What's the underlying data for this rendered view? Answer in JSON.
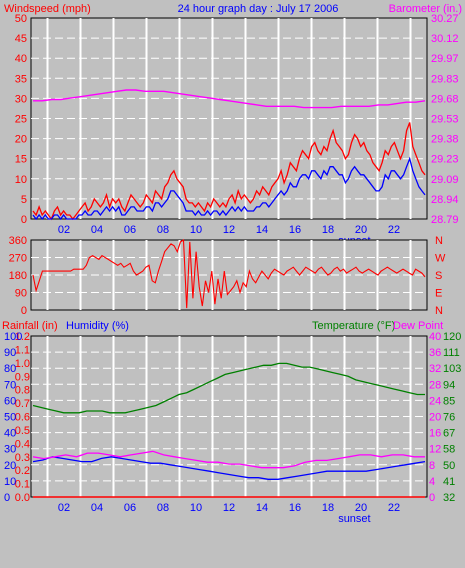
{
  "colors": {
    "background": "#c0c0c0",
    "plot_bg": "#c0c0c0",
    "grid": "#ffffff",
    "red": "#ff0000",
    "blue": "#0000ff",
    "magenta": "#ff00ff",
    "green": "#008000",
    "black": "#000000"
  },
  "header": {
    "left": "Windspeed (mph)",
    "center": "24 hour graph day : July 17 2006",
    "right": "Barometer (in.)"
  },
  "chart_data": [
    {
      "type": "line",
      "xlabel_ticks": [
        "02",
        "04",
        "06",
        "08",
        "10",
        "12",
        "14",
        "16",
        "18",
        "20",
        "22"
      ],
      "sunset_label": "sunset",
      "left_axis": {
        "label": "Windspeed (mph)",
        "ticks": [
          "50",
          "45",
          "40",
          "35",
          "30",
          "25",
          "20",
          "15",
          "10",
          "5",
          "0"
        ],
        "ylim": [
          0,
          50
        ]
      },
      "right_axis": {
        "label": "Barometer (in.)",
        "ticks": [
          "30.27",
          "30.12",
          "29.97",
          "29.83",
          "29.68",
          "29.53",
          "29.38",
          "29.23",
          "29.09",
          "28.94",
          "28.79"
        ],
        "ylim": [
          28.79,
          30.27
        ]
      },
      "series": [
        {
          "name": "Windspeed gust",
          "color": "red",
          "values": [
            2,
            1,
            3,
            1,
            2,
            1,
            0,
            2,
            3,
            1,
            2,
            1,
            1,
            0,
            1,
            2,
            3,
            4,
            2,
            3,
            5,
            4,
            3,
            4,
            6,
            3,
            5,
            4,
            5,
            3,
            2,
            4,
            6,
            5,
            4,
            3,
            4,
            6,
            5,
            4,
            7,
            6,
            5,
            8,
            9,
            11,
            12,
            10,
            9,
            8,
            5,
            4,
            4,
            3,
            4,
            3,
            2,
            4,
            3,
            5,
            4,
            3,
            4,
            3,
            5,
            6,
            4,
            7,
            5,
            6,
            5,
            4,
            5,
            7,
            6,
            8,
            7,
            6,
            8,
            9,
            10,
            12,
            9,
            11,
            14,
            13,
            12,
            15,
            17,
            16,
            15,
            18,
            19,
            17,
            16,
            18,
            17,
            20,
            22,
            19,
            18,
            17,
            15,
            16,
            19,
            21,
            20,
            18,
            19,
            17,
            16,
            14,
            13,
            12,
            14,
            17,
            16,
            18,
            19,
            17,
            15,
            17,
            22,
            24,
            18,
            16,
            14,
            12,
            11
          ]
        },
        {
          "name": "Windspeed",
          "color": "blue",
          "values": [
            1,
            0,
            1,
            0,
            1,
            0,
            0,
            1,
            1,
            0,
            1,
            0,
            0,
            0,
            0,
            1,
            1,
            2,
            1,
            1,
            2,
            2,
            1,
            2,
            3,
            2,
            3,
            2,
            3,
            1,
            1,
            2,
            3,
            3,
            2,
            2,
            2,
            3,
            3,
            2,
            4,
            4,
            3,
            4,
            5,
            7,
            7,
            6,
            5,
            4,
            2,
            2,
            2,
            1,
            2,
            1,
            1,
            2,
            1,
            2,
            2,
            1,
            2,
            1,
            2,
            3,
            2,
            3,
            2,
            3,
            2,
            2,
            2,
            3,
            3,
            4,
            4,
            3,
            4,
            5,
            6,
            7,
            6,
            7,
            9,
            8,
            8,
            10,
            11,
            11,
            10,
            12,
            12,
            11,
            10,
            12,
            11,
            13,
            13,
            12,
            11,
            11,
            9,
            10,
            12,
            13,
            12,
            11,
            11,
            10,
            9,
            8,
            7,
            7,
            8,
            11,
            10,
            12,
            12,
            11,
            10,
            11,
            13,
            15,
            12,
            10,
            8,
            7,
            6
          ]
        },
        {
          "name": "Barometer",
          "color": "magenta",
          "values": [
            29.66,
            29.66,
            29.67,
            29.67,
            29.68,
            29.69,
            29.7,
            29.71,
            29.72,
            29.73,
            29.74,
            29.74,
            29.73,
            29.73,
            29.73,
            29.72,
            29.71,
            29.7,
            29.69,
            29.68,
            29.67,
            29.66,
            29.65,
            29.64,
            29.63,
            29.62,
            29.62,
            29.62,
            29.62,
            29.61,
            29.61,
            29.61,
            29.61,
            29.62,
            29.62,
            29.62,
            29.62,
            29.63,
            29.63,
            29.64,
            29.65,
            29.65,
            29.66
          ]
        }
      ]
    },
    {
      "type": "line",
      "left_axis": {
        "ticks": [
          "360",
          "270",
          "180",
          "90",
          "0"
        ],
        "ylim": [
          0,
          360
        ]
      },
      "right_axis": {
        "ticks": [
          "N",
          "W",
          "S",
          "E",
          "N"
        ]
      },
      "series": [
        {
          "name": "Wind direction",
          "color": "red",
          "values": [
            180,
            100,
            150,
            200,
            200,
            200,
            200,
            200,
            200,
            200,
            200,
            200,
            200,
            210,
            210,
            210,
            210,
            230,
            270,
            280,
            270,
            260,
            280,
            270,
            260,
            250,
            240,
            230,
            240,
            220,
            230,
            240,
            200,
            180,
            190,
            200,
            220,
            230,
            150,
            140,
            200,
            250,
            300,
            320,
            340,
            330,
            300,
            350,
            360,
            10,
            350,
            60,
            300,
            120,
            20,
            150,
            90,
            200,
            30,
            160,
            60,
            200,
            80,
            100,
            120,
            150,
            90,
            140,
            120,
            200,
            160,
            140,
            170,
            200,
            180,
            160,
            190,
            210,
            200,
            190,
            180,
            200,
            210,
            220,
            200,
            180,
            200,
            220,
            210,
            200,
            190,
            210,
            220,
            200,
            180,
            190,
            210,
            220,
            200,
            210,
            190,
            200,
            210,
            220,
            200,
            190,
            200,
            210,
            200,
            190,
            180,
            200,
            210,
            220,
            210,
            200,
            190,
            200,
            210,
            200,
            190,
            180,
            210,
            200,
            190,
            170
          ]
        }
      ]
    },
    {
      "type": "line",
      "labels_top": {
        "rainfall": "Rainfall (in)",
        "humidity": "Humidity (%)",
        "temperature": "Temperature (°F)",
        "dewpoint": "Dew Point"
      },
      "rain_ticks": [
        "1.2",
        "1.1",
        "1.0",
        "0.9",
        "0.8",
        "0.7",
        "0.6",
        "0.5",
        "0.4",
        "0.3",
        "0.2",
        "0.1",
        "0.0"
      ],
      "humidity_ticks": [
        "100",
        "90",
        "80",
        "70",
        "60",
        "50",
        "40",
        "30",
        "20",
        "10",
        "0"
      ],
      "temp_ticks": [
        "40",
        "36",
        "32",
        "28",
        "24",
        "20",
        "16",
        "12",
        "8",
        "4",
        "0"
      ],
      "dew_ticks": [
        "120",
        "111",
        "103",
        "94",
        "85",
        "76",
        "67",
        "58",
        "50",
        "41",
        "32"
      ],
      "temp_ylim": [
        32,
        120
      ],
      "series": [
        {
          "name": "Temperature",
          "color": "green",
          "values": [
            82,
            81,
            80,
            79,
            78,
            78,
            78,
            79,
            79,
            79,
            78,
            78,
            78,
            79,
            80,
            81,
            82,
            84,
            86,
            88,
            89,
            91,
            93,
            95,
            97,
            99,
            100,
            101,
            102,
            103,
            104,
            104,
            105,
            105,
            104,
            103,
            103,
            102,
            101,
            100,
            99,
            98,
            96,
            95,
            94,
            93,
            92,
            91,
            90,
            89,
            88,
            88
          ]
        },
        {
          "name": "Humidity",
          "color": "blue",
          "values": [
            22,
            23,
            25,
            24,
            23,
            22,
            22,
            24,
            25,
            24,
            23,
            22,
            21,
            21,
            20,
            19,
            18,
            17,
            16,
            15,
            14,
            13,
            12,
            12,
            11,
            11,
            12,
            13,
            14,
            15,
            16,
            16,
            16,
            16,
            16,
            17,
            18,
            19,
            20,
            21,
            22
          ]
        },
        {
          "name": "Dew Point",
          "color": "magenta",
          "values": [
            54,
            53,
            54,
            55,
            54,
            56,
            56,
            55,
            54,
            55,
            56,
            57,
            55,
            54,
            53,
            52,
            51,
            51,
            50,
            50,
            49,
            48,
            48,
            48,
            49,
            51,
            52,
            52,
            53,
            54,
            55,
            55,
            54,
            55,
            55,
            54,
            54
          ]
        },
        {
          "name": "Rainfall",
          "color": "red",
          "values": [
            0,
            0,
            0
          ]
        }
      ]
    }
  ]
}
